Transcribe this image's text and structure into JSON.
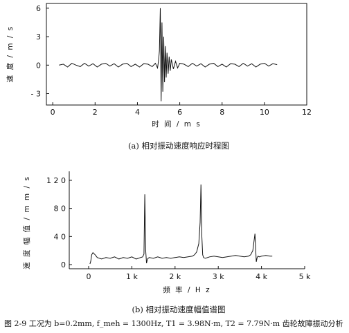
{
  "chart_data": [
    {
      "type": "line",
      "xlabel": "时 间 / m s",
      "ylabel": "速 度 / m / s",
      "xlim": [
        -0.3,
        12
      ],
      "ylim": [
        -4.2,
        6.5
      ],
      "x_ticks": [
        "0",
        "2",
        "4",
        "6",
        "8",
        "10",
        "12"
      ],
      "y_ticks": [
        "6",
        "3",
        "0",
        "- 3"
      ],
      "caption": "(a) 相对振动速度响应时程图",
      "series": [
        {
          "x": [
            0.3,
            0.5,
            0.7,
            0.9,
            1.1,
            1.3,
            1.5,
            1.7,
            1.9,
            2.1,
            2.3,
            2.5,
            2.7,
            2.9,
            3.1,
            3.3,
            3.5,
            3.7,
            3.9,
            4.1,
            4.3,
            4.5,
            4.7,
            4.85,
            4.95,
            5.0,
            5.04,
            5.08,
            5.12,
            5.16,
            5.2,
            5.24,
            5.28,
            5.32,
            5.36,
            5.4,
            5.45,
            5.5,
            5.55,
            5.6,
            5.7,
            5.8,
            5.9,
            6.0,
            6.2,
            6.4,
            6.6,
            6.8,
            7.0,
            7.2,
            7.4,
            7.6,
            7.8,
            8.0,
            8.2,
            8.4,
            8.6,
            8.8,
            9.0,
            9.2,
            9.4,
            9.6,
            9.8,
            10.0,
            10.2,
            10.4,
            10.6
          ],
          "y": [
            0,
            0.1,
            -0.2,
            0.2,
            0,
            -0.15,
            0.2,
            -0.1,
            0.15,
            -0.2,
            0.1,
            0.2,
            -0.1,
            0.15,
            -0.2,
            0.1,
            0.2,
            -0.15,
            0.1,
            -0.2,
            0.15,
            0.1,
            -0.15,
            0.2,
            -0.3,
            0.5,
            1.5,
            6.0,
            -3.8,
            4.5,
            -2.8,
            3.0,
            -1.8,
            2.0,
            -1.3,
            1.3,
            -0.9,
            0.9,
            -0.6,
            0.6,
            -0.4,
            0.4,
            -0.3,
            0.2,
            0.1,
            -0.15,
            0.2,
            -0.1,
            0.15,
            -0.2,
            0.1,
            0.2,
            -0.15,
            0.1,
            -0.2,
            0.15,
            0.1,
            -0.15,
            0.2,
            -0.1,
            0.15,
            -0.2,
            0.1,
            0.2,
            -0.1,
            0.15,
            0.05
          ]
        }
      ]
    },
    {
      "type": "line",
      "xlabel": "频 率 / H z",
      "ylabel": "速 度 幅 值 / m m / s",
      "xlim": [
        -300,
        5000
      ],
      "ylim": [
        -5,
        130
      ],
      "x_ticks": [
        "0",
        "1 k",
        "2 k",
        "3 k",
        "4 k",
        "5 k"
      ],
      "y_ticks": [
        "1 2 0",
        "8 0",
        "4 0",
        "0"
      ],
      "caption": "(b) 相对振动速度幅值谱图",
      "series": [
        {
          "x": [
            30,
            50,
            70,
            100,
            150,
            200,
            300,
            400,
            500,
            600,
            700,
            800,
            900,
            1000,
            1100,
            1200,
            1250,
            1280,
            1300,
            1320,
            1340,
            1360,
            1400,
            1500,
            1600,
            1700,
            1800,
            1900,
            2000,
            2100,
            2200,
            2300,
            2400,
            2450,
            2500,
            2550,
            2580,
            2600,
            2620,
            2640,
            2660,
            2700,
            2800,
            2900,
            3000,
            3100,
            3200,
            3300,
            3400,
            3500,
            3600,
            3700,
            3750,
            3800,
            3850,
            3880,
            3900,
            3920,
            3950,
            4000,
            4100,
            4200,
            4250
          ],
          "y": [
            1,
            5,
            14,
            17,
            14,
            10,
            8,
            10,
            9,
            11,
            8,
            10,
            9,
            11,
            8,
            10,
            11,
            15,
            100,
            20,
            2,
            8,
            10,
            9,
            11,
            9,
            10,
            9,
            10,
            11,
            10,
            11,
            12,
            14,
            18,
            30,
            60,
            114,
            40,
            14,
            10,
            9,
            11,
            12,
            11,
            10,
            11,
            12,
            13,
            12,
            11,
            12,
            14,
            20,
            44,
            4,
            10,
            12,
            11,
            12,
            13,
            12,
            12
          ]
        }
      ]
    }
  ],
  "figure_caption": "图 2-9 工况为 b=0.2mm, f_meh = 1300Hz, T1 = 3.98N·m, T2 = 7.79N·m 齿轮故障振动分析"
}
